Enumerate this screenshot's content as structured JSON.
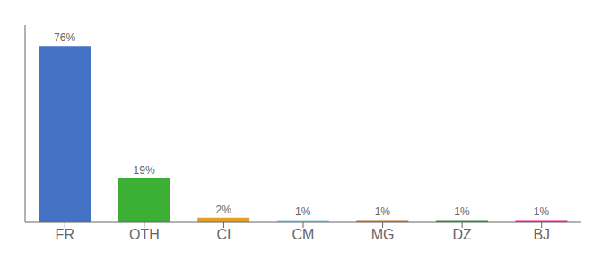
{
  "chart_data": {
    "type": "bar",
    "categories": [
      "FR",
      "OTH",
      "CI",
      "CM",
      "MG",
      "DZ",
      "BJ"
    ],
    "values": [
      76,
      19,
      2,
      1,
      1,
      1,
      1
    ],
    "value_labels": [
      "76%",
      "19%",
      "2%",
      "1%",
      "1%",
      "1%",
      "1%"
    ],
    "colors": [
      "#4472c4",
      "#3cb034",
      "#e8a020",
      "#87ceeb",
      "#c87020",
      "#2e8b3a",
      "#ff1493"
    ],
    "ylim": [
      0,
      85
    ],
    "yticks": [],
    "data_labels": true,
    "tick_labels": "x",
    "grid": false
  }
}
